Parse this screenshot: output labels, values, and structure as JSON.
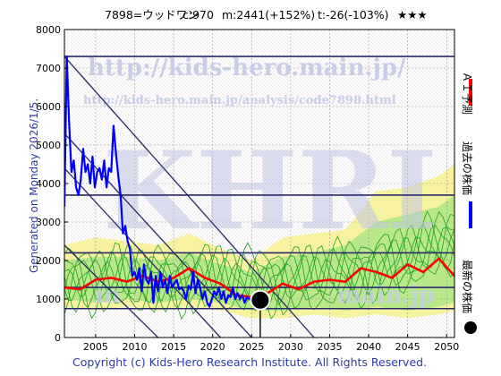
{
  "header": {
    "code_name": "7898=ウッドワン",
    "current": "c:970",
    "mean": "m:2441(+152%)",
    "target": "t:-26(-103%)",
    "stars": "★★★"
  },
  "side_label": "Generated on Monday 2026/1/5.",
  "footer": "Copyright (c) Kids-Hero Research Institute. All Rights Reserved.",
  "watermark": {
    "url_big": "http://kids-hero.main.jp/",
    "url_small": "http://kids-hero.main.jp/analysis/code7898.html",
    "logo": "KHRI",
    "url_bottom_left": "in",
    "url_bottom_right": "main.jp"
  },
  "legend": [
    {
      "label": "ＡＩ予測",
      "color": "#ff0000"
    },
    {
      "label": "過去の株価",
      "color": "#0000ff"
    },
    {
      "label": "最新の株価",
      "color": "#000000"
    }
  ],
  "chart_data": {
    "type": "line",
    "xlim": [
      2001,
      2051
    ],
    "ylim": [
      0,
      8000
    ],
    "x_ticks": [
      "2005",
      "2010",
      "2015",
      "2020",
      "2025",
      "2030",
      "2035",
      "2040",
      "2045",
      "2050"
    ],
    "y_ticks": [
      "0",
      "1000",
      "2000",
      "3000",
      "4000",
      "5000",
      "6000",
      "7000",
      "8000"
    ],
    "grid": true,
    "horizontal_lines": [
      7300,
      3700,
      2200,
      1300,
      750
    ],
    "diagonal_lines": [
      {
        "x1": 2001,
        "y1": 7300,
        "x2": 2033,
        "y2": 0
      },
      {
        "x1": 2001,
        "y1": 5300,
        "x2": 2025,
        "y2": 0
      },
      {
        "x1": 2001,
        "y1": 4400,
        "x2": 2021,
        "y2": 0
      },
      {
        "x1": 2001,
        "y1": 2400,
        "x2": 2013,
        "y2": 0
      }
    ],
    "history": {
      "name": "過去の株価",
      "color": "#0000ff",
      "x": [
        2001.0,
        2001.3,
        2001.6,
        2001.9,
        2002.2,
        2002.5,
        2002.8,
        2003.1,
        2003.4,
        2003.7,
        2004.0,
        2004.3,
        2004.6,
        2004.9,
        2005.2,
        2005.5,
        2005.8,
        2006.1,
        2006.4,
        2006.7,
        2007.0,
        2007.3,
        2007.6,
        2007.9,
        2008.2,
        2008.5,
        2008.8,
        2009.1,
        2009.4,
        2009.7,
        2010.0,
        2010.3,
        2010.6,
        2010.9,
        2011.2,
        2011.5,
        2011.8,
        2012.1,
        2012.4,
        2012.7,
        2013.0,
        2013.3,
        2013.6,
        2013.9,
        2014.2,
        2014.5,
        2014.8,
        2015.1,
        2015.4,
        2015.7,
        2016.0,
        2016.3,
        2016.6,
        2016.9,
        2017.2,
        2017.5,
        2017.8,
        2018.1,
        2018.4,
        2018.7,
        2019.0,
        2019.3,
        2019.6,
        2019.9,
        2020.2,
        2020.5,
        2020.8,
        2021.1,
        2021.4,
        2021.7,
        2022.0,
        2022.3,
        2022.6,
        2022.9,
        2023.2,
        2023.5,
        2023.8,
        2024.1,
        2024.4,
        2024.7,
        2025.0,
        2025.3,
        2025.6
      ],
      "y": [
        3400,
        7300,
        5600,
        4300,
        4600,
        3900,
        3700,
        4100,
        4900,
        4300,
        4500,
        4000,
        4700,
        3900,
        4300,
        4400,
        4100,
        4600,
        3900,
        4400,
        4300,
        5500,
        4800,
        4200,
        3700,
        2700,
        2900,
        2500,
        2300,
        1600,
        1700,
        1500,
        1800,
        1200,
        1900,
        1500,
        1400,
        1700,
        900,
        1600,
        1200,
        1700,
        1300,
        1500,
        1150,
        1600,
        1300,
        1400,
        1500,
        1250,
        1300,
        1200,
        1000,
        1350,
        1250,
        1700,
        1150,
        1500,
        1300,
        1000,
        1200,
        900,
        800,
        1000,
        1200,
        1100,
        1300,
        1000,
        1200,
        900,
        1100,
        1050,
        1300,
        1000,
        1150,
        1000,
        1100,
        900,
        1050,
        1000,
        950,
        1000,
        1000
      ]
    },
    "forecast": {
      "name": "ＡＩ予測",
      "color": "#ff0000",
      "x": [
        2001,
        2003,
        2005,
        2007,
        2009,
        2011,
        2013,
        2015,
        2017,
        2019,
        2021,
        2023,
        2025,
        2027,
        2029,
        2031,
        2033,
        2035,
        2037,
        2039,
        2041,
        2043,
        2045,
        2047,
        2049,
        2051
      ],
      "y": [
        1300,
        1250,
        1500,
        1550,
        1450,
        1600,
        1450,
        1550,
        1800,
        1550,
        1400,
        1100,
        1050,
        1150,
        1400,
        1250,
        1450,
        1500,
        1450,
        1800,
        1700,
        1550,
        1900,
        1700,
        2050,
        1600
      ]
    },
    "band_outer": {
      "x": [
        2001,
        2005,
        2009,
        2013,
        2017,
        2021,
        2025,
        2029,
        2033,
        2037,
        2041,
        2045,
        2049,
        2051
      ],
      "upper": [
        2400,
        2600,
        2500,
        2400,
        2700,
        2300,
        2000,
        2600,
        2700,
        2800,
        3800,
        3900,
        4200,
        4500
      ],
      "lower": [
        800,
        700,
        800,
        700,
        800,
        700,
        500,
        500,
        600,
        500,
        600,
        500,
        600,
        700
      ]
    },
    "band_inner": {
      "x": [
        2001,
        2005,
        2009,
        2013,
        2017,
        2021,
        2025,
        2029,
        2033,
        2037,
        2041,
        2045,
        2049,
        2051
      ],
      "upper": [
        2000,
        2100,
        2100,
        2000,
        2200,
        1900,
        1700,
        2100,
        2200,
        2400,
        3000,
        3200,
        3400,
        3700
      ],
      "lower": [
        1000,
        900,
        1000,
        900,
        1000,
        900,
        700,
        700,
        800,
        700,
        800,
        700,
        800,
        900
      ]
    },
    "latest": {
      "x": 2026.1,
      "y": 970,
      "label": "最新の株価"
    }
  }
}
